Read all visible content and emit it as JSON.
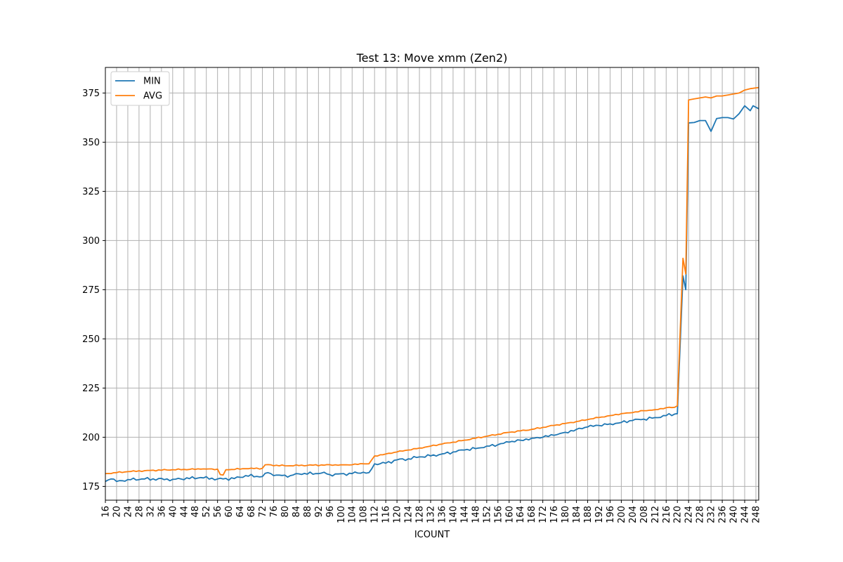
{
  "chart_data": {
    "type": "line",
    "title": "Test 13: Move xmm (Zen2)",
    "xlabel": "ICOUNT",
    "ylabel": "",
    "xlim": [
      16,
      249
    ],
    "ylim": [
      168,
      388
    ],
    "xticks": [
      16,
      20,
      24,
      28,
      32,
      36,
      40,
      44,
      48,
      52,
      56,
      60,
      64,
      68,
      72,
      76,
      80,
      84,
      88,
      92,
      96,
      100,
      104,
      108,
      112,
      116,
      120,
      124,
      128,
      132,
      136,
      140,
      144,
      148,
      152,
      156,
      160,
      164,
      168,
      172,
      176,
      180,
      184,
      188,
      192,
      196,
      200,
      204,
      208,
      212,
      216,
      220,
      224,
      228,
      232,
      236,
      240,
      244,
      248
    ],
    "yticks": [
      175,
      200,
      225,
      250,
      275,
      300,
      325,
      350,
      375
    ],
    "grid": true,
    "legend_position": "top-left",
    "series": [
      {
        "name": "MIN",
        "color": "#1f77b4",
        "anchors": [
          [
            16,
            177.5
          ],
          [
            18,
            178.8
          ],
          [
            20,
            177.5
          ],
          [
            24,
            178.5
          ],
          [
            30,
            178.8
          ],
          [
            40,
            178.6
          ],
          [
            50,
            179.5
          ],
          [
            56,
            178.8
          ],
          [
            62,
            179
          ],
          [
            66,
            180.5
          ],
          [
            72,
            180
          ],
          [
            74,
            182
          ],
          [
            76,
            180.5
          ],
          [
            82,
            180.5
          ],
          [
            84,
            181.5
          ],
          [
            92,
            181.5
          ],
          [
            94,
            182.2
          ],
          [
            96,
            181
          ],
          [
            104,
            181.5
          ],
          [
            108,
            182.2
          ],
          [
            110,
            182
          ],
          [
            112,
            186.5
          ],
          [
            116,
            186.8
          ],
          [
            120,
            188.5
          ],
          [
            124,
            189
          ],
          [
            128,
            190
          ],
          [
            132,
            190.5
          ],
          [
            136,
            191.5
          ],
          [
            140,
            192.5
          ],
          [
            144,
            193.5
          ],
          [
            148,
            194.2
          ],
          [
            152,
            195.5
          ],
          [
            156,
            196.2
          ],
          [
            160,
            197.5
          ],
          [
            164,
            198.5
          ],
          [
            168,
            199.5
          ],
          [
            172,
            200
          ],
          [
            176,
            201
          ],
          [
            180,
            202.5
          ],
          [
            184,
            204
          ],
          [
            188,
            205.2
          ],
          [
            192,
            206
          ],
          [
            196,
            206.8
          ],
          [
            200,
            207.5
          ],
          [
            204,
            208.5
          ],
          [
            208,
            209.2
          ],
          [
            212,
            210
          ],
          [
            216,
            211
          ],
          [
            219,
            211.8
          ],
          [
            220,
            212
          ],
          [
            222,
            282
          ],
          [
            223,
            275
          ],
          [
            224,
            359.8
          ],
          [
            226,
            360
          ],
          [
            228,
            361
          ],
          [
            230,
            361
          ],
          [
            232,
            355.5
          ],
          [
            234,
            362
          ],
          [
            236,
            362.5
          ],
          [
            238,
            362.5
          ],
          [
            240,
            361.8
          ],
          [
            242,
            364.5
          ],
          [
            244,
            368.5
          ],
          [
            246,
            366
          ],
          [
            247,
            368.5
          ],
          [
            249,
            367
          ]
        ],
        "noise": 0.8
      },
      {
        "name": "AVG",
        "color": "#ff7f0e",
        "anchors": [
          [
            16,
            181.5
          ],
          [
            20,
            182
          ],
          [
            24,
            182.5
          ],
          [
            30,
            183
          ],
          [
            40,
            183.5
          ],
          [
            50,
            183.8
          ],
          [
            56,
            183.8
          ],
          [
            57,
            181
          ],
          [
            58,
            180.8
          ],
          [
            59,
            183.5
          ],
          [
            66,
            184
          ],
          [
            72,
            184.2
          ],
          [
            73,
            186
          ],
          [
            80,
            185.5
          ],
          [
            90,
            185.8
          ],
          [
            100,
            186
          ],
          [
            104,
            186
          ],
          [
            108,
            186.5
          ],
          [
            110,
            186.5
          ],
          [
            112,
            190.5
          ],
          [
            116,
            191.5
          ],
          [
            120,
            192.5
          ],
          [
            124,
            193.5
          ],
          [
            128,
            194.5
          ],
          [
            132,
            195.5
          ],
          [
            136,
            196.5
          ],
          [
            140,
            197.5
          ],
          [
            144,
            198.5
          ],
          [
            148,
            199.5
          ],
          [
            152,
            200.5
          ],
          [
            156,
            201.5
          ],
          [
            160,
            202.5
          ],
          [
            164,
            203.2
          ],
          [
            168,
            204
          ],
          [
            172,
            205
          ],
          [
            176,
            206
          ],
          [
            180,
            207
          ],
          [
            184,
            208
          ],
          [
            188,
            209
          ],
          [
            192,
            210
          ],
          [
            196,
            211
          ],
          [
            200,
            212
          ],
          [
            204,
            212.5
          ],
          [
            208,
            213.5
          ],
          [
            212,
            214
          ],
          [
            216,
            215
          ],
          [
            219,
            215.2
          ],
          [
            220,
            216
          ],
          [
            222,
            291
          ],
          [
            223,
            283
          ],
          [
            224,
            371.5
          ],
          [
            226,
            372
          ],
          [
            228,
            372.5
          ],
          [
            230,
            373
          ],
          [
            232,
            372.5
          ],
          [
            234,
            373.5
          ],
          [
            236,
            373.5
          ],
          [
            238,
            374
          ],
          [
            240,
            374.5
          ],
          [
            242,
            375
          ],
          [
            244,
            376.5
          ],
          [
            246,
            377.2
          ],
          [
            249,
            377.8
          ]
        ],
        "noise": 0.35
      }
    ]
  }
}
